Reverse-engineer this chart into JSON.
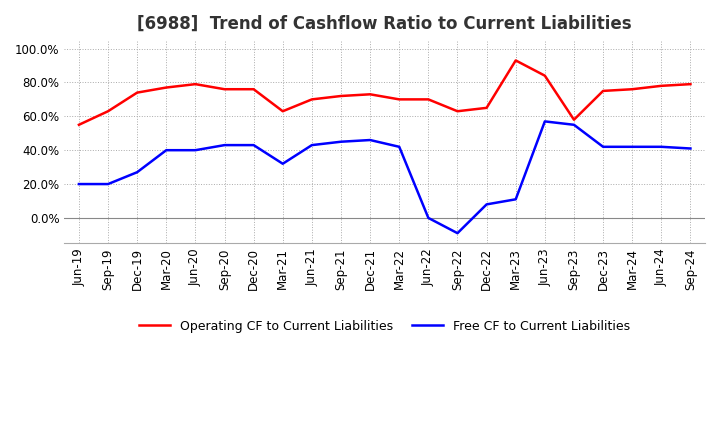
{
  "title": "[6988]  Trend of Cashflow Ratio to Current Liabilities",
  "x_labels": [
    "Jun-19",
    "Sep-19",
    "Dec-19",
    "Mar-20",
    "Jun-20",
    "Sep-20",
    "Dec-20",
    "Mar-21",
    "Jun-21",
    "Sep-21",
    "Dec-21",
    "Mar-22",
    "Jun-22",
    "Sep-22",
    "Dec-22",
    "Mar-23",
    "Jun-23",
    "Sep-23",
    "Dec-23",
    "Mar-24",
    "Jun-24",
    "Sep-24"
  ],
  "operating_cf": [
    55,
    63,
    74,
    77,
    79,
    76,
    76,
    63,
    70,
    72,
    73,
    70,
    70,
    63,
    65,
    93,
    84,
    58,
    75,
    76,
    78,
    79
  ],
  "free_cf": [
    20,
    20,
    27,
    40,
    40,
    43,
    43,
    32,
    43,
    45,
    46,
    42,
    0,
    -9,
    8,
    11,
    57,
    55,
    42,
    42,
    42,
    41
  ],
  "ylim": [
    -15,
    105
  ],
  "yticks": [
    0,
    20,
    40,
    60,
    80,
    100
  ],
  "operating_color": "#FF0000",
  "free_color": "#0000FF",
  "grid_color": "#AAAAAA",
  "grid_style": "dotted",
  "background_color": "#FFFFFF",
  "title_fontsize": 12,
  "tick_fontsize": 8.5,
  "legend_fontsize": 9
}
